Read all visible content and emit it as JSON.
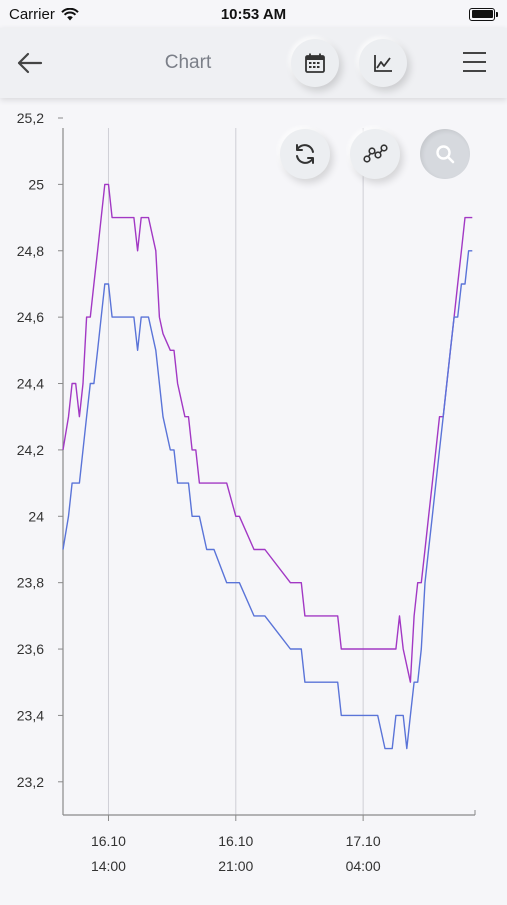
{
  "status_bar": {
    "carrier": "Carrier",
    "time": "10:53 AM"
  },
  "header": {
    "title": "Chart",
    "back_icon": "arrow-left-icon",
    "calendar_icon": "calendar-icon",
    "chart_icon": "line-chart-icon",
    "menu_icon": "hamburger-menu-icon"
  },
  "controls": {
    "refresh_icon": "refresh-icon",
    "points_icon": "data-points-icon",
    "zoom_icon": "zoom-icon"
  },
  "colors": {
    "series1": "#a238c4",
    "series2": "#5a74d8",
    "background": "#f6f6f9",
    "axis": "#8a8a8a",
    "grid": "#cfcfd6"
  },
  "chart_data": {
    "type": "line",
    "title": "",
    "xlabel": "",
    "ylabel": "",
    "ylim": [
      23.1,
      25.2
    ],
    "xlim": [
      -2.5,
      20.15
    ],
    "grid": {
      "vertical": true,
      "horizontal": false
    },
    "ytick_values": [
      23.2,
      23.4,
      23.6,
      23.8,
      24.0,
      24.2,
      24.4,
      24.6,
      24.8,
      25.0,
      25.2
    ],
    "ytick_labels": [
      "23,2",
      "23,4",
      "23,6",
      "23,8",
      "24",
      "24,2",
      "24,4",
      "24,6",
      "24,8",
      "25",
      "25,2"
    ],
    "xtick_values": [
      0,
      7,
      14
    ],
    "xtick_labels": [
      [
        "16.10",
        "14:00"
      ],
      [
        "16.10",
        "21:00"
      ],
      [
        "17.10",
        "04:00"
      ]
    ],
    "series": [
      {
        "x": [
          -2.5,
          -2.2,
          -2.0,
          -1.8,
          -1.6,
          -1.4,
          -1.2,
          -1.0,
          -0.8,
          -0.6,
          -0.4,
          -0.2,
          0.0,
          0.2,
          0.4,
          1.0,
          1.4,
          1.6,
          1.8,
          2.0,
          2.2,
          2.6,
          2.8,
          3.0,
          3.4,
          3.6,
          3.8,
          4.2,
          4.4,
          4.6,
          4.8,
          5.0,
          5.4,
          5.6,
          5.8,
          6.5,
          7.0,
          7.2,
          8.0,
          8.4,
          8.6,
          10.0,
          10.6,
          10.8,
          12.0,
          12.6,
          12.8,
          14.0,
          14.6,
          15.0,
          15.2,
          15.4,
          15.6,
          15.8,
          16.0,
          16.2,
          16.6,
          16.8,
          17.0,
          17.2,
          17.4,
          17.6,
          17.8,
          18.0,
          18.2,
          18.4,
          18.6,
          18.8,
          19.0,
          19.2,
          19.4,
          19.6,
          19.8,
          20.0
        ],
        "values": [
          24.2,
          24.3,
          24.4,
          24.4,
          24.3,
          24.4,
          24.6,
          24.6,
          24.7,
          24.8,
          24.9,
          25.0,
          25.0,
          24.9,
          24.9,
          24.9,
          24.9,
          24.8,
          24.9,
          24.9,
          24.9,
          24.8,
          24.6,
          24.55,
          24.5,
          24.5,
          24.4,
          24.3,
          24.3,
          24.2,
          24.2,
          24.1,
          24.1,
          24.1,
          24.1,
          24.1,
          24.0,
          24.0,
          23.9,
          23.9,
          23.9,
          23.8,
          23.8,
          23.7,
          23.7,
          23.7,
          23.6,
          23.6,
          23.6,
          23.6,
          23.6,
          23.6,
          23.6,
          23.6,
          23.7,
          23.6,
          23.5,
          23.7,
          23.8,
          23.8,
          23.9,
          24.0,
          24.1,
          24.2,
          24.3,
          24.3,
          24.4,
          24.5,
          24.6,
          24.7,
          24.8,
          24.9,
          24.9,
          24.9
        ]
      },
      {
        "x": [
          -2.5,
          -2.2,
          -2.0,
          -1.8,
          -1.6,
          -1.4,
          -1.2,
          -1.0,
          -0.8,
          -0.6,
          -0.4,
          -0.2,
          0.0,
          0.2,
          0.4,
          1.0,
          1.4,
          1.6,
          1.8,
          2.0,
          2.2,
          2.6,
          2.8,
          3.0,
          3.4,
          3.6,
          3.8,
          4.2,
          4.4,
          4.6,
          4.8,
          5.0,
          5.4,
          5.6,
          5.8,
          6.5,
          7.0,
          7.2,
          8.0,
          8.4,
          8.6,
          10.0,
          10.6,
          10.8,
          12.0,
          12.6,
          12.8,
          14.0,
          14.6,
          14.8,
          15.2,
          15.4,
          15.6,
          15.8,
          16.0,
          16.2,
          16.4,
          16.6,
          16.8,
          17.0,
          17.2,
          17.4,
          17.6,
          17.8,
          18.0,
          18.2,
          18.4,
          18.6,
          18.8,
          19.0,
          19.2,
          19.4,
          19.6,
          19.8,
          20.0
        ],
        "values": [
          23.9,
          24.0,
          24.1,
          24.1,
          24.1,
          24.2,
          24.3,
          24.4,
          24.4,
          24.5,
          24.6,
          24.7,
          24.7,
          24.6,
          24.6,
          24.6,
          24.6,
          24.5,
          24.6,
          24.6,
          24.6,
          24.5,
          24.4,
          24.3,
          24.2,
          24.2,
          24.1,
          24.1,
          24.1,
          24.0,
          24.0,
          24.0,
          23.9,
          23.9,
          23.9,
          23.8,
          23.8,
          23.8,
          23.7,
          23.7,
          23.7,
          23.6,
          23.6,
          23.5,
          23.5,
          23.5,
          23.4,
          23.4,
          23.4,
          23.4,
          23.3,
          23.3,
          23.3,
          23.4,
          23.4,
          23.4,
          23.3,
          23.4,
          23.5,
          23.5,
          23.6,
          23.8,
          23.9,
          24.0,
          24.1,
          24.2,
          24.3,
          24.4,
          24.5,
          24.6,
          24.6,
          24.7,
          24.7,
          24.8,
          24.8
        ]
      }
    ]
  }
}
